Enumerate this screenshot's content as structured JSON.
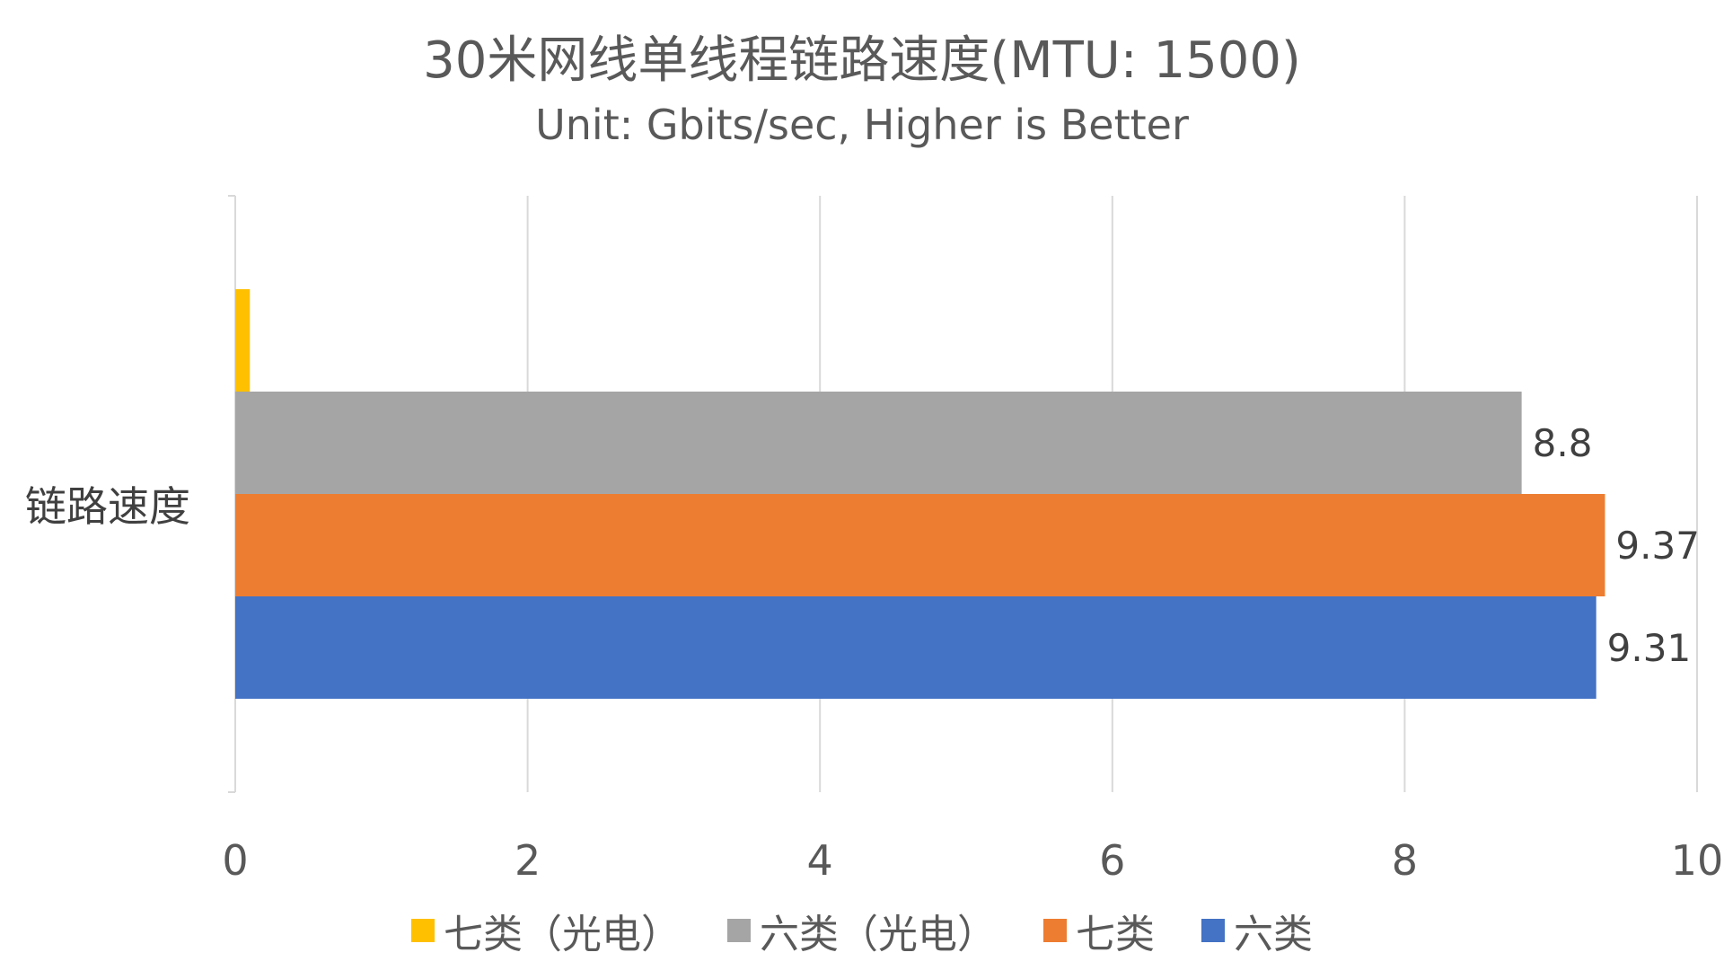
{
  "chart_data": {
    "type": "bar",
    "orientation": "horizontal",
    "title": "30米网线单线程链路速度(MTU: 1500)",
    "subtitle": "Unit: Gbits/sec, Higher is Better",
    "categories": [
      "链路速度"
    ],
    "xlim": [
      0,
      10
    ],
    "x_ticks": [
      0,
      2,
      4,
      6,
      8,
      10
    ],
    "grid": true,
    "legend_position": "bottom",
    "series": [
      {
        "name": "六类",
        "values": [
          9.31
        ],
        "color": "#4472C4",
        "label": "9.31"
      },
      {
        "name": "七类",
        "values": [
          9.37
        ],
        "color": "#ED7D31",
        "label": "9.37"
      },
      {
        "name": "六类（光电）",
        "values": [
          8.8
        ],
        "color": "#A5A5A5",
        "label": "8.8"
      },
      {
        "name": "七类（光电）",
        "values": [
          0.1
        ],
        "color": "#FFC000",
        "label": ""
      }
    ]
  },
  "legend": [
    {
      "name": "七类（光电）",
      "color": "#FFC000"
    },
    {
      "name": "六类（光电）",
      "color": "#A5A5A5"
    },
    {
      "name": "七类",
      "color": "#ED7D31"
    },
    {
      "name": "六类",
      "color": "#4472C4"
    }
  ]
}
